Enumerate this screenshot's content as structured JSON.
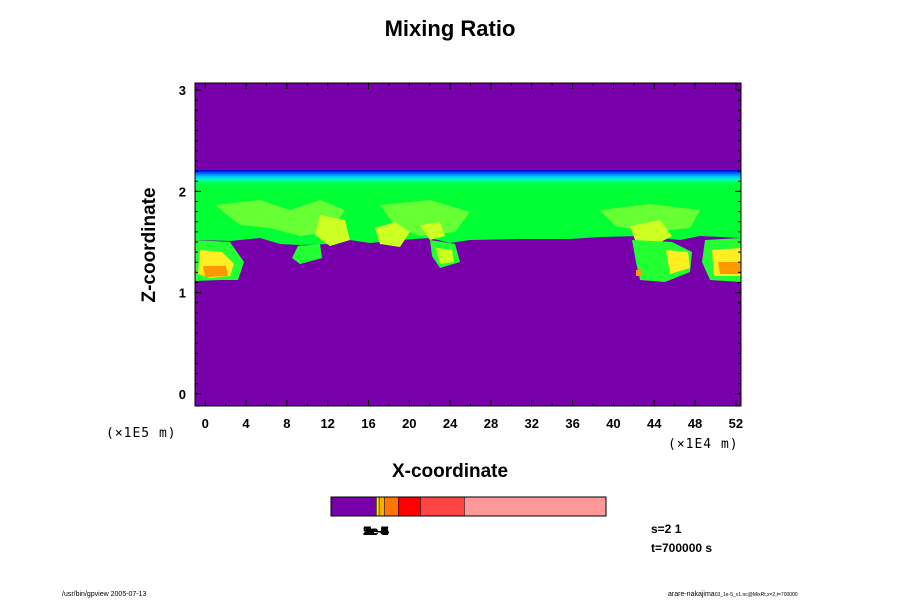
{
  "chart_data": {
    "type": "heatmap",
    "title": "Mixing Ratio",
    "xlabel": "X-coordinate",
    "ylabel": "Z-coordinate",
    "x_ticks": [
      "0",
      "4",
      "8",
      "12",
      "16",
      "20",
      "24",
      "28",
      "32",
      "36",
      "40",
      "44",
      "48",
      "52"
    ],
    "y_ticks": [
      "0",
      "1",
      "2",
      "3"
    ],
    "xlim": [
      -1,
      52.5
    ],
    "ylim": [
      -0.12,
      3.07
    ],
    "x_scale_label": "(×1E4 m)",
    "y_scale_label": "(×1E5 m)",
    "colormap": [
      "#7700aa",
      "#0000dd",
      "#0055ff",
      "#00aaff",
      "#00eeff",
      "#00ff66",
      "#33ff44",
      "#88ff22",
      "#ccff22",
      "#ffff00",
      "#ffcc00",
      "#ff8800",
      "#ff3300"
    ],
    "fields": {
      "top_region_color": "#7700aa",
      "cloud_base_color": "#00ff33",
      "lower_region_color": "#7700aa"
    },
    "colorbar": {
      "colors": [
        "#7700aa",
        "#ffee00",
        "#ffaa00",
        "#ff7700",
        "#ff0000",
        "#ff4444",
        "#ff9999"
      ],
      "fractions": [
        0.165,
        0.01,
        0.02,
        0.05,
        0.08,
        0.16,
        0.515
      ],
      "labels_overlapped": [
        "1e-6",
        "2e-5",
        "5e-5",
        "1e-4",
        "2e-4",
        "5e-4"
      ]
    }
  },
  "annotations": {
    "step": "s=2 1",
    "time": "t=700000 s"
  },
  "footer": {
    "left": "/usr/bin/gpview 2005-07-13",
    "right": "arare-nakajima",
    "right_small": "03_1e-5_v1.nc@MixRt,x=2,t=700000"
  }
}
